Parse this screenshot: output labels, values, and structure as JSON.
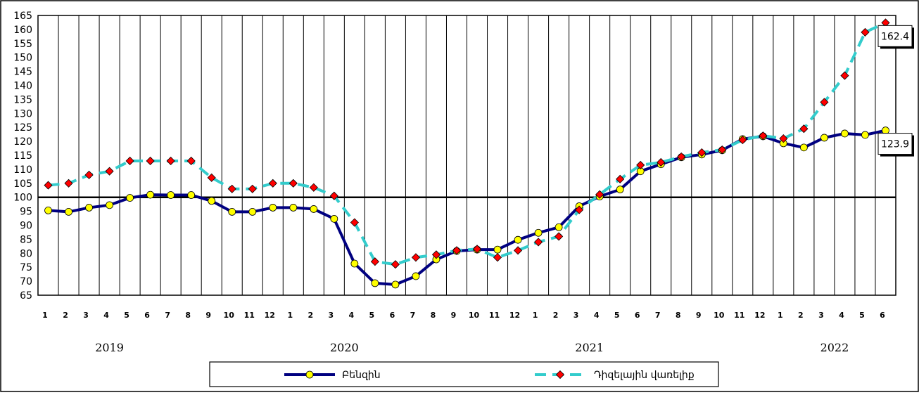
{
  "chart_data": {
    "type": "line",
    "ylim": [
      65,
      165
    ],
    "y_ticks": [
      65,
      70,
      75,
      80,
      85,
      90,
      95,
      100,
      105,
      110,
      115,
      120,
      125,
      130,
      135,
      140,
      145,
      150,
      155,
      160,
      165
    ],
    "reference_line": 100,
    "grid": "vertical",
    "month_labels": [
      "1",
      "2",
      "3",
      "4",
      "5",
      "6",
      "7",
      "8",
      "9",
      "10",
      "11",
      "12",
      "1",
      "2",
      "3",
      "4",
      "5",
      "6",
      "7",
      "8",
      "9",
      "10",
      "11",
      "12",
      "1",
      "2",
      "3",
      "4",
      "5",
      "6",
      "7",
      "8",
      "9",
      "10",
      "11",
      "12",
      "1",
      "2",
      "3",
      "4",
      "5",
      "6"
    ],
    "years": [
      {
        "label": "2019",
        "center_index": 3
      },
      {
        "label": "2020",
        "center_index": 14.5
      },
      {
        "label": "2021",
        "center_index": 26.5
      },
      {
        "label": "2022",
        "center_index": 38.5
      }
    ],
    "series": [
      {
        "name": "Բենզին",
        "color": "#000080",
        "marker_fill": "#ffff00",
        "marker": "circle",
        "values": [
          95.3,
          94.8,
          96.3,
          97.2,
          99.8,
          100.9,
          100.8,
          100.8,
          98.7,
          94.8,
          94.8,
          96.3,
          96.3,
          95.8,
          92.3,
          76.3,
          69.3,
          68.8,
          71.8,
          77.8,
          80.8,
          81.3,
          81.3,
          84.8,
          87.3,
          89.3,
          96.8,
          100.3,
          102.8,
          109.3,
          111.8,
          114.3,
          115.3,
          116.8,
          120.8,
          121.8,
          119.3,
          117.8,
          121.3,
          122.8,
          122.3,
          123.9
        ],
        "end_label": "123.9"
      },
      {
        "name": "Դիզելային վառելիք",
        "color": "#33cccc",
        "marker_fill": "#ff0000",
        "marker": "diamond",
        "values": [
          104.3,
          105.0,
          108.0,
          109.3,
          113.0,
          113.0,
          113.0,
          113.0,
          107.0,
          103.0,
          103.0,
          105.0,
          105.0,
          103.5,
          100.5,
          91.0,
          77.0,
          76.0,
          78.5,
          79.5,
          81.0,
          81.5,
          78.5,
          81.0,
          84.0,
          86.0,
          95.5,
          101.0,
          106.5,
          111.5,
          112.5,
          114.5,
          116.0,
          117.0,
          120.5,
          122.0,
          121.0,
          124.5,
          134.0,
          143.5,
          159.0,
          162.4
        ],
        "end_label": "162.4"
      }
    ]
  }
}
